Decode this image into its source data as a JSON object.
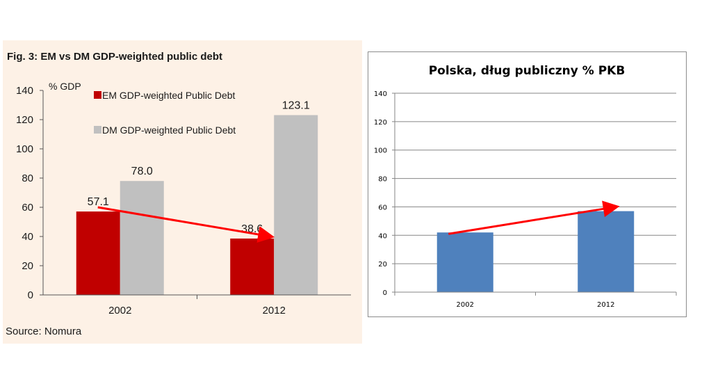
{
  "chart_data": [
    {
      "type": "bar",
      "title": "Fig. 3: EM vs DM GDP-weighted public debt",
      "ylabel": "% GDP",
      "categories": [
        "2002",
        "2012"
      ],
      "series": [
        {
          "name": "EM GDP-weighted Public Debt",
          "values": [
            57.1,
            38.6
          ],
          "color": "#c00000"
        },
        {
          "name": "DM GDP-weighted Public Debt",
          "values": [
            78.0,
            123.1
          ],
          "color": "#c0c0c0"
        }
      ],
      "data_labels": [
        "57.1",
        "78.0",
        "38.6",
        "123.1"
      ],
      "ylim": [
        0,
        140
      ],
      "yticks": [
        "0",
        "20",
        "40",
        "60",
        "80",
        "100",
        "120",
        "140"
      ],
      "legend": "top-left",
      "grid": false,
      "annotation": {
        "type": "arrow",
        "color": "#ff0000",
        "from": {
          "category": "2002",
          "value": 60
        },
        "to": {
          "category": "2012",
          "value": 40
        }
      },
      "source": "Source: Nomura"
    },
    {
      "type": "bar",
      "title": "Polska, dług publiczny % PKB",
      "categories": [
        "2002",
        "2012"
      ],
      "series": [
        {
          "values": [
            42,
            57
          ],
          "color": "#4f81bd"
        }
      ],
      "ylim": [
        0,
        140
      ],
      "yticks": [
        "0",
        "20",
        "40",
        "60",
        "80",
        "100",
        "120",
        "140"
      ],
      "grid": true,
      "annotation": {
        "type": "arrow",
        "color": "#ff0000",
        "from": {
          "category": "2002",
          "value": 41
        },
        "to": {
          "category": "2012",
          "value": 60
        }
      }
    }
  ]
}
